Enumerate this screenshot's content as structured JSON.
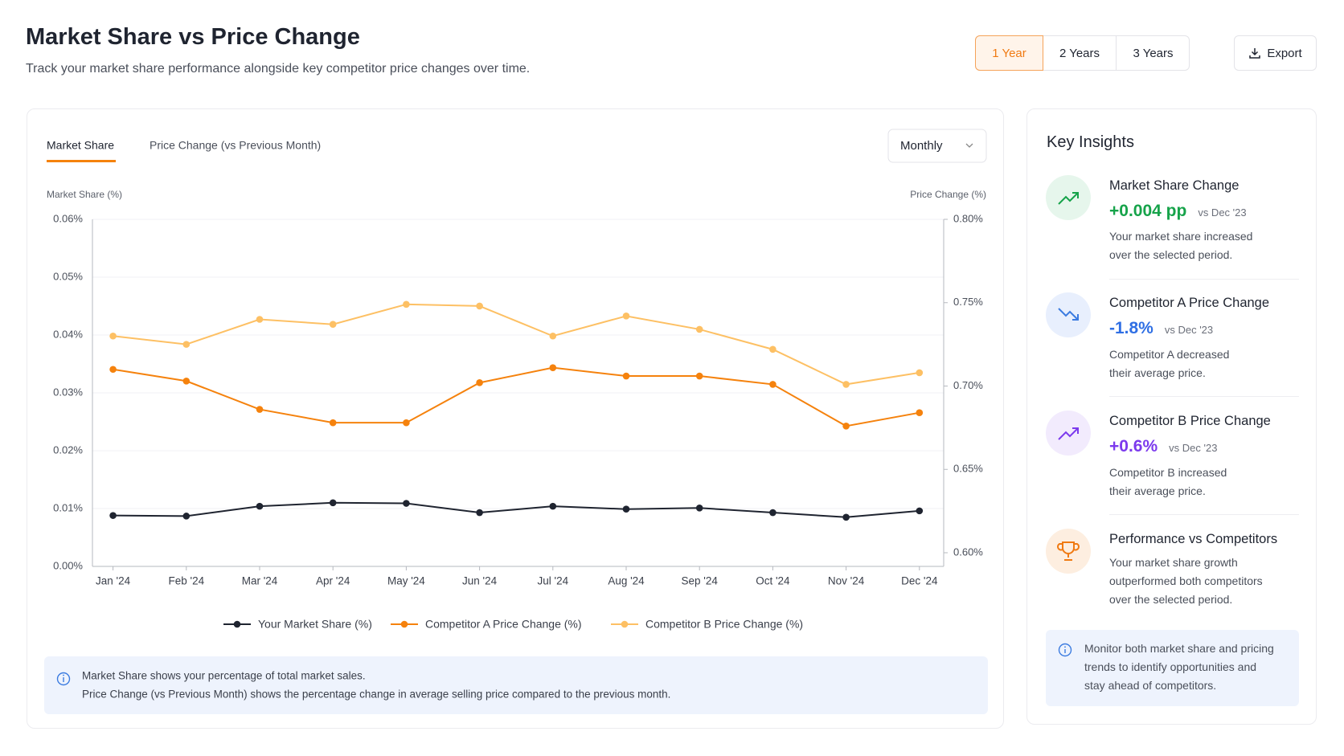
{
  "header": {
    "title": "Market Share vs Price Change",
    "subtitle": "Track your market share performance alongside key competitor price changes over time."
  },
  "periods": [
    "1 Year",
    "2 Years",
    "3 Years"
  ],
  "export": "Export",
  "tabs": [
    "Market Share",
    "Price Change (vs Previous Month)"
  ],
  "dropdown": "Monthly",
  "chart_data": {
    "type": "line",
    "y_label": "Market Share (%)",
    "y2_label": "Price Change (%)",
    "categories": [
      "Jan '24",
      "Feb '24",
      "Mar '24",
      "Apr '24",
      "May '24",
      "Jun '24",
      "Jul '24",
      "Aug '24",
      "Sep '24",
      "Oct '24",
      "Nov '24",
      "Dec '24"
    ],
    "series": [
      {
        "name": "Your Market Share (%)",
        "color": "#1f2430",
        "values": [
          0.0088,
          0.0087,
          0.0104,
          0.011,
          0.0109,
          0.0093,
          0.0104,
          0.0099,
          0.0101,
          0.0093,
          0.0085,
          0.0096
        ]
      },
      {
        "name": "Competitor A Price Change (%)",
        "color": "#f5820d",
        "axis": "y2",
        "values": [
          0.71,
          0.703,
          0.686,
          0.678,
          0.678,
          0.702,
          0.711,
          0.706,
          0.706,
          0.701,
          0.676,
          0.684
        ]
      },
      {
        "name": "Competitor B Price Change (%)",
        "color": "#fdc064",
        "axis": "y2",
        "values": [
          0.73,
          0.725,
          0.74,
          0.737,
          0.749,
          0.748,
          0.73,
          0.742,
          0.734,
          0.722,
          0.701,
          0.708
        ]
      }
    ],
    "ylim": [
      0,
      0.06
    ],
    "yticks": [
      {
        "value": 0,
        "label": "0.00%"
      },
      {
        "value": 0.01,
        "label": "0.01%"
      },
      {
        "value": 0.02,
        "label": "0.02%"
      },
      {
        "value": 0.03,
        "label": "0.03%"
      },
      {
        "value": 0.04,
        "label": "0.04%"
      },
      {
        "value": 0.05,
        "label": "0.05%"
      },
      {
        "value": 0.06,
        "label": "0.06%"
      }
    ],
    "y2lim": [
      0.6,
      0.8
    ],
    "y2ticks": [
      {
        "value": 0.6,
        "label": "0.60%"
      },
      {
        "value": 0.65,
        "label": "0.65%"
      },
      {
        "value": 0.7,
        "label": "0.70%"
      },
      {
        "value": 0.75,
        "label": "0.75%"
      },
      {
        "value": 0.8,
        "label": "0.80%"
      }
    ],
    "grid": true,
    "legend": "bottom"
  },
  "chart_notes": [
    "Market Share shows your percentage of total market sales.",
    "Price Change (vs Previous Month) shows the percentage change in average selling price compared to the previous month."
  ],
  "insights": {
    "title": "Key Insights",
    "items": [
      {
        "title": "Market Share Change",
        "value": "+0.004 pp",
        "compare": "vs Dec '23",
        "lines": [
          "Your market share increased",
          "over the selected period."
        ]
      },
      {
        "title": "Competitor A Price Change",
        "value": "-1.8%",
        "compare": "vs Dec '23",
        "lines": [
          "Competitor A decreased",
          "their average price."
        ]
      },
      {
        "title": "Competitor B Price Change",
        "value": "+0.6%",
        "compare": "vs Dec '23",
        "lines": [
          "Competitor B increased",
          "their average price."
        ]
      },
      {
        "title": "Performance vs Competitors",
        "lines": [
          "Your market share growth",
          "outperformed both competitors",
          "over the selected period."
        ]
      }
    ],
    "note": [
      "Monitor both market share and pricing",
      "trends to identify opportunities and",
      "stay ahead of competitors."
    ]
  }
}
